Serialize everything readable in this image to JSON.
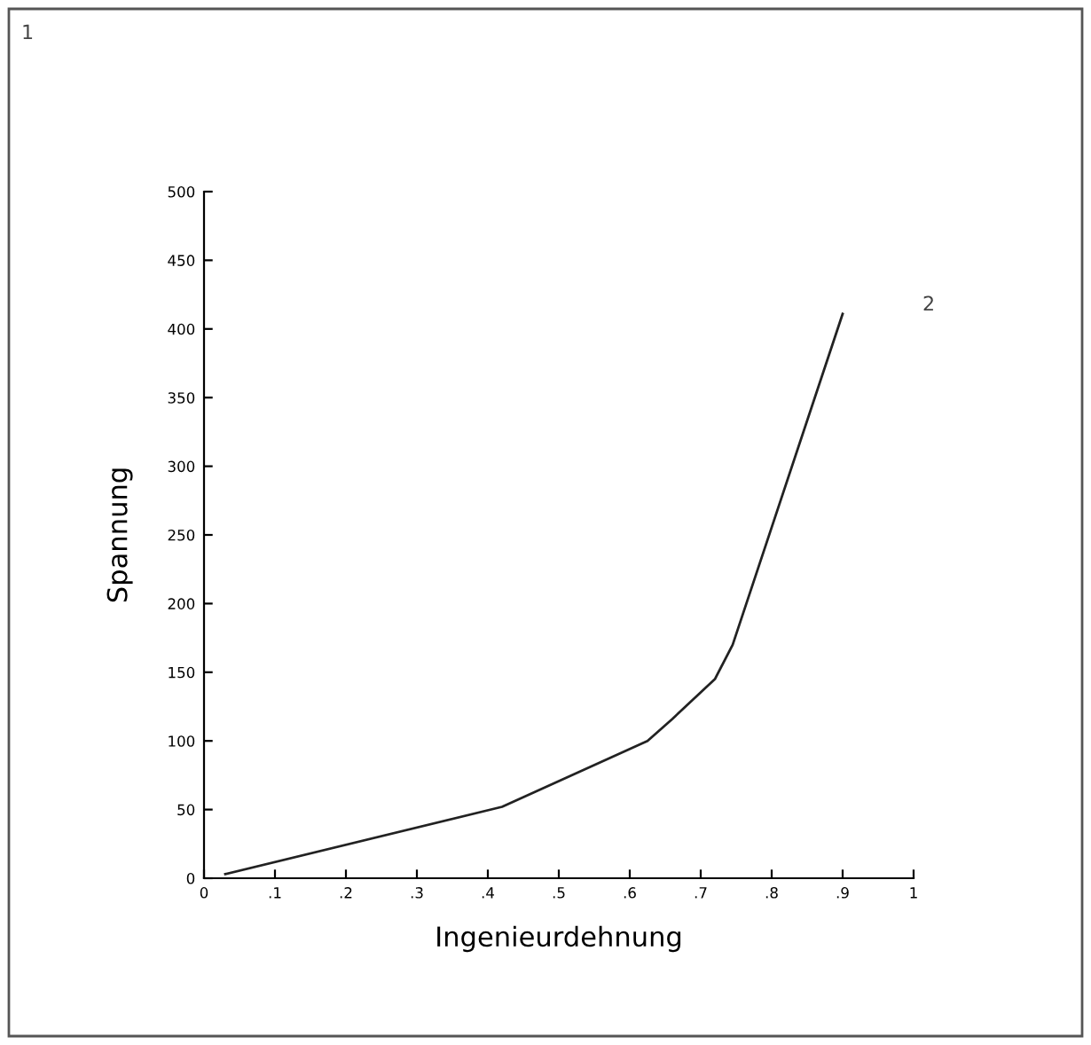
{
  "chart_data": {
    "type": "line",
    "xlabel": "Ingenieurdehnung",
    "ylabel": "Spannung",
    "x": [
      0.03,
      0.42,
      0.625,
      0.66,
      0.72,
      0.745,
      0.9
    ],
    "series": [
      {
        "color": "#222222",
        "values": [
          3,
          52,
          100,
          116,
          145,
          170,
          411
        ]
      }
    ],
    "xlim": [
      0,
      1
    ],
    "ylim": [
      0,
      500
    ],
    "xticks": [
      0,
      {
        "value": 0.1,
        "label": ".1"
      },
      {
        "value": 0.2,
        "label": ".2"
      },
      {
        "value": 0.3,
        "label": ".3"
      },
      {
        "value": 0.4,
        "label": ".4"
      },
      {
        "value": 0.5,
        "label": ".5"
      },
      {
        "value": 0.6,
        "label": ".6"
      },
      {
        "value": 0.7,
        "label": ".7"
      },
      {
        "value": 0.8,
        "label": ".8"
      },
      {
        "value": 0.9,
        "label": ".9"
      },
      1
    ],
    "yticks": [
      0,
      50,
      100,
      150,
      200,
      250,
      300,
      350,
      400,
      450,
      500
    ],
    "annotations": [
      "1",
      "2"
    ],
    "grid": false,
    "legend": false
  }
}
